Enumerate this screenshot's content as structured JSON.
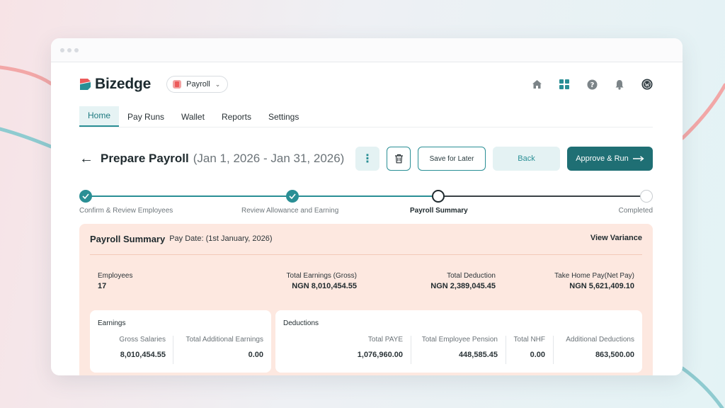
{
  "app": {
    "logo_text": "Bizedge",
    "module": "Payroll"
  },
  "top_icons": [
    "home-icon",
    "apps-grid-icon",
    "help-icon",
    "bell-icon",
    "user-avatar"
  ],
  "nav": {
    "tabs": [
      {
        "label": "Home",
        "active": true
      },
      {
        "label": "Pay Runs",
        "active": false
      },
      {
        "label": "Wallet",
        "active": false
      },
      {
        "label": "Reports",
        "active": false
      },
      {
        "label": "Settings",
        "active": false
      }
    ]
  },
  "header": {
    "title": "Prepare Payroll",
    "range": "(Jan 1, 2026 - Jan 31, 2026)",
    "buttons": {
      "save": "Save for Later",
      "back": "Back",
      "approve": "Approve & Run"
    }
  },
  "steps": [
    {
      "label": "Confirm & Review Employees",
      "state": "done"
    },
    {
      "label": "Review Allowance and Earning",
      "state": "done"
    },
    {
      "label": "Payroll Summary",
      "state": "current"
    },
    {
      "label": "Completed",
      "state": "todo"
    }
  ],
  "summary": {
    "title": "Payroll Summary",
    "pay_date": "Pay Date: (1st January, 2026)",
    "view_variance": "View Variance",
    "metrics": {
      "employees": {
        "label": "Employees",
        "value": "17"
      },
      "total_earnings": {
        "label": "Total Earnings (Gross)",
        "value": "NGN 8,010,454.55"
      },
      "total_deduction": {
        "label": "Total Deduction",
        "value": "NGN 2,389,045.45"
      },
      "take_home": {
        "label": "Take Home Pay(Net Pay)",
        "value": "NGN 5,621,409.10"
      }
    },
    "earnings": {
      "title": "Earnings",
      "gross_salaries": {
        "label": "Gross Salaries",
        "value": "8,010,454.55"
      },
      "additional_earnings": {
        "label": "Total Additional Earnings",
        "value": "0.00"
      }
    },
    "deductions": {
      "title": "Deductions",
      "paye": {
        "label": "Total PAYE",
        "value": "1,076,960.00"
      },
      "pension": {
        "label": "Total Employee Pension",
        "value": "448,585.45"
      },
      "nhf": {
        "label": "Total NHF",
        "value": "0.00"
      },
      "additional": {
        "label": "Additional Deductions",
        "value": "863,500.00"
      }
    }
  },
  "colors": {
    "brand_teal": "#2a8f95",
    "brand_dark_teal": "#1f6f74",
    "logo_red": "#ec5b5b",
    "summary_bg": "#fde8e0"
  }
}
